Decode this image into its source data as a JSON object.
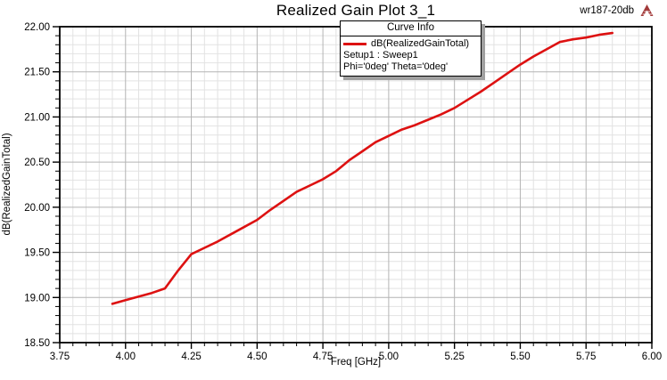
{
  "window": {
    "corner_label": "wr187-20db"
  },
  "legend": {
    "title": "Curve Info",
    "series_label": "dB(RealizedGainTotal)",
    "info_lines": [
      "Setup1 : Sweep1",
      "Phi='0deg' Theta='0deg'"
    ]
  },
  "colors": {
    "curve": "#dd1111",
    "grid_minor": "#e2e2e2",
    "grid_major": "#b4b4b4",
    "frame": "#000000",
    "logo": "#a23a3a",
    "legend_shadow": "#a0a0a0"
  },
  "chart_data": {
    "type": "line",
    "title": "Realized Gain Plot 3_1",
    "xlabel": "Freq [GHz]",
    "ylabel": "dB(RealizedGainTotal)",
    "xlim": [
      3.75,
      6.0
    ],
    "ylim": [
      18.5,
      22.0
    ],
    "x_major_step": 0.25,
    "x_minor_step": 0.05,
    "y_major_step": 0.5,
    "y_minor_step": 0.1,
    "grid": true,
    "legend_position": "top-center",
    "x_tick_labels": [
      "3.75",
      "4.00",
      "4.25",
      "4.50",
      "4.75",
      "5.00",
      "5.25",
      "5.50",
      "5.75",
      "6.00"
    ],
    "y_tick_labels": [
      "22.00",
      "21.50",
      "21.00",
      "20.50",
      "20.00",
      "19.50",
      "19.00",
      "18.50"
    ],
    "series": [
      {
        "name": "dB(RealizedGainTotal)",
        "color": "#dd1111",
        "x": [
          3.95,
          4.0,
          4.05,
          4.1,
          4.15,
          4.2,
          4.25,
          4.3,
          4.35,
          4.4,
          4.45,
          4.5,
          4.55,
          4.6,
          4.65,
          4.7,
          4.75,
          4.8,
          4.85,
          4.9,
          4.95,
          5.0,
          5.05,
          5.1,
          5.15,
          5.2,
          5.25,
          5.3,
          5.35,
          5.4,
          5.45,
          5.5,
          5.55,
          5.6,
          5.65,
          5.7,
          5.75,
          5.8,
          5.85
        ],
        "y": [
          18.93,
          18.97,
          19.01,
          19.05,
          19.1,
          19.3,
          19.48,
          19.55,
          19.62,
          19.7,
          19.78,
          19.86,
          19.97,
          20.07,
          20.17,
          20.24,
          20.31,
          20.4,
          20.52,
          20.62,
          20.72,
          20.79,
          20.86,
          20.91,
          20.97,
          21.03,
          21.1,
          21.19,
          21.28,
          21.38,
          21.48,
          21.58,
          21.67,
          21.75,
          21.83,
          21.86,
          21.88,
          21.91,
          21.93
        ]
      }
    ]
  }
}
